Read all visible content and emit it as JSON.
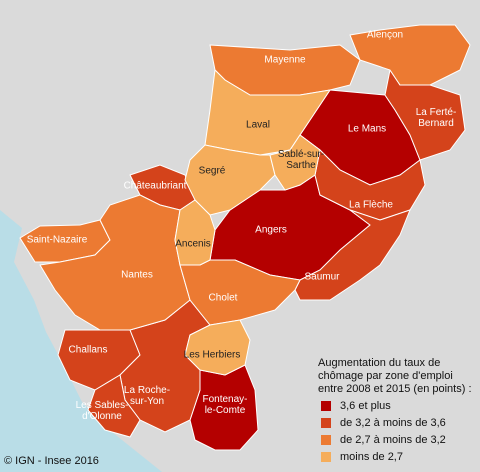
{
  "map": {
    "legend": {
      "title": "Augmentation du taux de\nchômage par zone d'emploi\nentre 2008 et 2015 (en points) :",
      "classes": [
        {
          "label": "3,6 et plus",
          "color": "#b40000",
          "zones": [
            "Le Mans",
            "Angers",
            "Fontenay-\nle-Comte"
          ]
        },
        {
          "label": "de 3,2 à moins de 3,6",
          "color": "#d4431b",
          "zones": [
            "La Ferté-\nBernard",
            "La Flèche",
            "Saumur",
            "Châteaubriant",
            "Challans",
            "La Roche-\nsur-Yon",
            "Les Sables-\nd'Olonne"
          ]
        },
        {
          "label": "de 2,7 à moins de 3,2",
          "color": "#ec7a32",
          "zones": [
            "Alençon",
            "Mayenne",
            "Saint-Nazaire",
            "Nantes",
            "Cholet"
          ]
        },
        {
          "label": "moins de 2,7",
          "color": "#f5ad5b",
          "zones": [
            "Laval",
            "Segré",
            "Sablé-sur-\nSarthe",
            "Ancenis",
            "Les Herbiers"
          ]
        }
      ]
    },
    "credit": "© IGN - Insee 2016"
  }
}
